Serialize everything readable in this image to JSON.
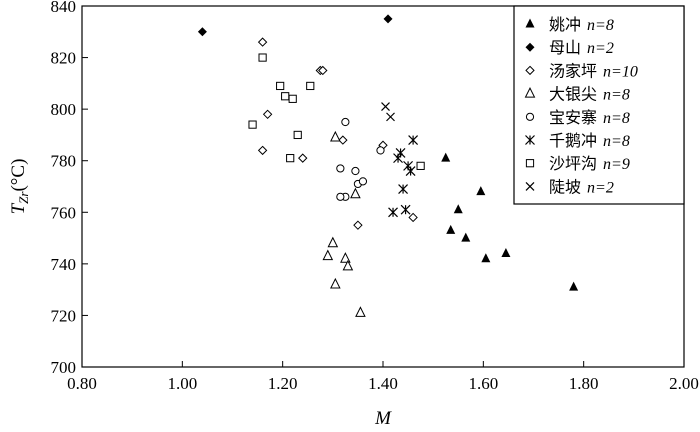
{
  "chart_data": {
    "type": "scatter",
    "xlabel": "M",
    "ylabel_main": "T",
    "ylabel_sub": "Zr",
    "ylabel_unit": "(°C)",
    "xlim": [
      0.8,
      2.0
    ],
    "ylim": [
      700,
      840
    ],
    "xticks": [
      "0.80",
      "1.00",
      "1.20",
      "1.40",
      "1.60",
      "1.80",
      "2.00"
    ],
    "yticks": [
      "700",
      "720",
      "740",
      "760",
      "780",
      "800",
      "820",
      "840"
    ],
    "legend_position": "top-right",
    "series": [
      {
        "name": "姚冲",
        "count": "n=8",
        "marker": "triangle-filled",
        "x": [
          1.525,
          1.535,
          1.55,
          1.565,
          1.595,
          1.605,
          1.645,
          1.78
        ],
        "y": [
          781,
          753,
          761,
          750,
          768,
          742,
          744,
          731
        ]
      },
      {
        "name": "母山",
        "count": "n=2",
        "marker": "diamond-filled",
        "x": [
          1.04,
          1.41
        ],
        "y": [
          830,
          835
        ]
      },
      {
        "name": "汤家坪",
        "count": "n=10",
        "marker": "diamond-open",
        "x": [
          1.16,
          1.17,
          1.16,
          1.24,
          1.275,
          1.28,
          1.32,
          1.35,
          1.4,
          1.46
        ],
        "y": [
          826,
          798,
          784,
          781,
          815,
          815,
          788,
          755,
          786,
          758
        ]
      },
      {
        "name": "大银尖",
        "count": "n=8",
        "marker": "triangle-open",
        "x": [
          1.29,
          1.3,
          1.305,
          1.325,
          1.33,
          1.345,
          1.355,
          1.305
        ],
        "y": [
          743,
          748,
          732,
          742,
          739,
          767,
          721,
          789
        ]
      },
      {
        "name": "宝安寨",
        "count": "n=8",
        "marker": "circle-open",
        "x": [
          1.325,
          1.315,
          1.325,
          1.345,
          1.35,
          1.36,
          1.395,
          1.315
        ],
        "y": [
          795,
          777,
          766,
          776,
          771,
          772,
          784,
          766
        ]
      },
      {
        "name": "千鹅冲",
        "count": "n=8",
        "marker": "asterisk",
        "x": [
          1.42,
          1.43,
          1.435,
          1.44,
          1.45,
          1.455,
          1.46,
          1.445
        ],
        "y": [
          760,
          781,
          783,
          769,
          778,
          776,
          788,
          761
        ]
      },
      {
        "name": "沙坪沟",
        "count": "n=9",
        "marker": "square-open",
        "x": [
          1.14,
          1.16,
          1.195,
          1.205,
          1.215,
          1.22,
          1.23,
          1.255,
          1.475
        ],
        "y": [
          794,
          820,
          809,
          805,
          781,
          804,
          790,
          809,
          778
        ]
      },
      {
        "name": "陡坡",
        "count": "n=2",
        "marker": "cross",
        "x": [
          1.405,
          1.415
        ],
        "y": [
          801,
          797
        ]
      }
    ]
  }
}
